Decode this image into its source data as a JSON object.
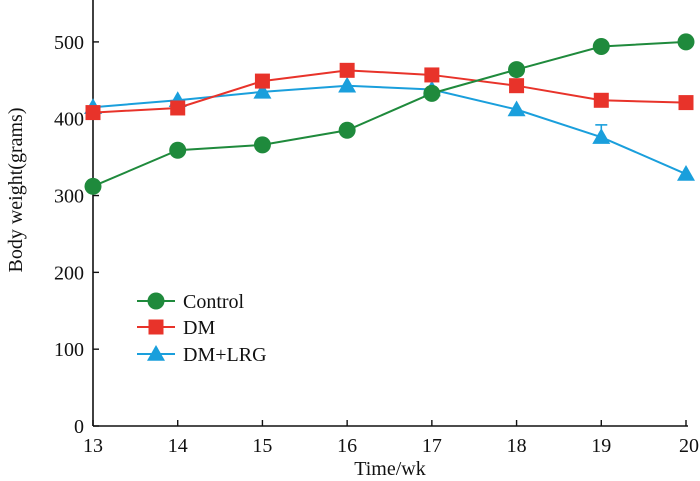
{
  "chart_data": {
    "type": "line",
    "title": "",
    "xlabel": "Time/wk",
    "ylabel": "Body weight(grams)",
    "x": [
      13,
      14,
      15,
      16,
      17,
      18,
      19,
      20
    ],
    "xlim": [
      13,
      20
    ],
    "ylim": [
      0,
      550
    ],
    "xticks": [
      "13",
      "14",
      "15",
      "16",
      "17",
      "18",
      "19",
      "20"
    ],
    "yticks": [
      "0",
      "100",
      "200",
      "300",
      "400",
      "500"
    ],
    "ytick_values": [
      0,
      100,
      200,
      300,
      400,
      500
    ],
    "grid": false,
    "legend_position": "lower-left",
    "series": [
      {
        "name": "Control",
        "marker": "circle",
        "color": "#1f8a3c",
        "values": [
          312,
          359,
          366,
          385,
          433,
          464,
          494,
          500
        ]
      },
      {
        "name": "DM",
        "marker": "square",
        "color": "#e8332a",
        "values": [
          408,
          414,
          449,
          463,
          457,
          443,
          424,
          421
        ]
      },
      {
        "name": "DM+LRG",
        "marker": "triangle",
        "color": "#1a9fdc",
        "values": [
          415,
          424,
          435,
          443,
          438,
          412,
          376,
          328
        ],
        "errors": [
          0,
          0,
          0,
          0,
          0,
          0,
          16,
          0
        ]
      }
    ]
  }
}
